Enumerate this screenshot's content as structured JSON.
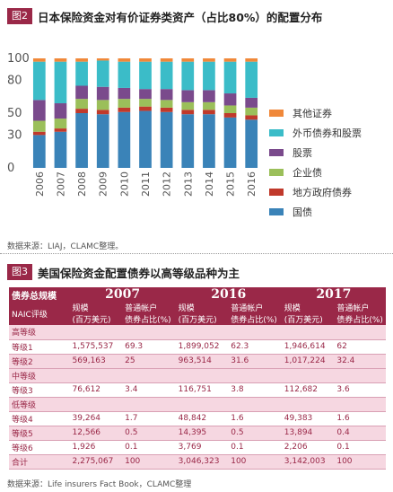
{
  "figure2": {
    "tag": "图2",
    "title": "日本保险资金对有价证券类资产（占比80%）的配置分布",
    "source": "数据来源：LIAJ，CLAMC整理。",
    "colors": {
      "国债": "#3a83b8",
      "地方政府债券": "#c0392b",
      "企业债": "#9bbf5a",
      "股票": "#7a4a8c",
      "外币债券和股票": "#3bbcc8",
      "其他证券": "#f0883a"
    },
    "legend": [
      {
        "label": "其他证券",
        "color": "#f0883a"
      },
      {
        "label": "外币债券和股票",
        "color": "#3bbcc8"
      },
      {
        "label": "股票",
        "color": "#7a4a8c"
      },
      {
        "label": "企业债",
        "color": "#9bbf5a"
      },
      {
        "label": "地方政府债券",
        "color": "#c0392b"
      },
      {
        "label": "国债",
        "color": "#3a83b8"
      }
    ]
  },
  "chart_data": {
    "type": "bar",
    "stacked": true,
    "categories": [
      "2006",
      "2007",
      "2008",
      "2009",
      "2010",
      "2011",
      "2012",
      "2013",
      "2014",
      "2015",
      "2016"
    ],
    "yticks": [
      0,
      30,
      50,
      80,
      100
    ],
    "ylim": [
      0,
      100
    ],
    "series": [
      {
        "name": "国债",
        "values": [
          30,
          33,
          50,
          49,
          51,
          52,
          51,
          49,
          49,
          46,
          44
        ]
      },
      {
        "name": "地方政府债券",
        "values": [
          3,
          3,
          4,
          4,
          4,
          4,
          4,
          4,
          4,
          4,
          4
        ]
      },
      {
        "name": "企业债",
        "values": [
          10,
          9,
          9,
          9,
          8,
          7,
          7,
          7,
          7,
          7,
          7
        ]
      },
      {
        "name": "股票",
        "values": [
          19,
          14,
          12,
          12,
          10,
          9,
          10,
          11,
          11,
          11,
          9
        ]
      },
      {
        "name": "外币债券和股票",
        "values": [
          35,
          38,
          22,
          24,
          24,
          25,
          25,
          26,
          26,
          29,
          33
        ]
      },
      {
        "name": "其他证券",
        "values": [
          3,
          3,
          3,
          2,
          3,
          3,
          3,
          3,
          3,
          3,
          3
        ]
      }
    ]
  },
  "figure3": {
    "tag": "图3",
    "title": "美国保险资金配置债券以高等级品种为主",
    "source": "数据来源：Life insurers Fact Book，CLAMC整理",
    "header": {
      "col1_line1": "债券总规模",
      "col1_line2": "NAIC评级",
      "years": [
        "2007",
        "2016",
        "2017"
      ],
      "sub_scale": "规模\n(百万美元)",
      "sub_scale_a": "规模",
      "sub_scale_b": "(百万美元)",
      "sub_ratio_a": "普通帐户",
      "sub_ratio_b": "债券占比(%)"
    },
    "rows": [
      {
        "type": "group",
        "label": "高等级"
      },
      {
        "type": "data",
        "label": "等级1",
        "v": [
          "1,575,537",
          "69.3",
          "1,899,052",
          "62.3",
          "1,946,614",
          "62"
        ]
      },
      {
        "type": "data",
        "label": "等级2",
        "v": [
          "569,163",
          "25",
          "963,514",
          "31.6",
          "1,017,224",
          "32.4"
        ]
      },
      {
        "type": "group",
        "label": "中等级"
      },
      {
        "type": "data",
        "label": "等级3",
        "v": [
          "76,612",
          "3.4",
          "116,751",
          "3.8",
          "112,682",
          "3.6"
        ]
      },
      {
        "type": "group",
        "label": "低等级"
      },
      {
        "type": "data",
        "label": "等级4",
        "v": [
          "39,264",
          "1.7",
          "48,842",
          "1.6",
          "49,383",
          "1.6"
        ]
      },
      {
        "type": "data",
        "label": "等级5",
        "v": [
          "12,566",
          "0.5",
          "14,395",
          "0.5",
          "13,894",
          "0.4"
        ]
      },
      {
        "type": "data",
        "label": "等级6",
        "v": [
          "1,926",
          "0.1",
          "3,769",
          "0.1",
          "2,206",
          "0.1"
        ]
      },
      {
        "type": "data",
        "label": "合计",
        "v": [
          "2,275,067",
          "100",
          "3,046,323",
          "100",
          "3,142,003",
          "100"
        ]
      }
    ]
  }
}
